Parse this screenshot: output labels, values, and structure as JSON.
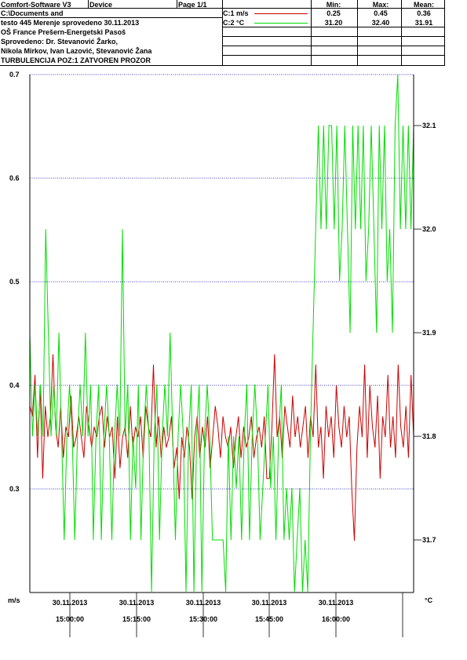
{
  "header": {
    "software": "Comfort-Software V3",
    "device_label": "Device",
    "page": "Page 1/1",
    "lines": [
      "C:\\Documents and",
      "testo 445 Merenje sprovedeno 30.11.2013",
      "OŠ France Prešern-Energetski Pasoš",
      "Sprovedeno: Dr. Stevanović Žarko,",
      "Nikola Mirkov, Ivan Lazović, Stevanović Žana",
      "TURBULENCIJA POZ:1 ZATVOREN PROZOR"
    ],
    "stat_headers": {
      "min": "Min:",
      "max": "Max:",
      "mean": "Mean:"
    },
    "channels": [
      {
        "label": "C:1 m/s",
        "color": "#cc0000",
        "min": "0.25",
        "max": "0.45",
        "mean": "0.36"
      },
      {
        "label": "C:2 °C",
        "color": "#00dd00",
        "min": "31.20",
        "max": "32.40",
        "mean": "31.91"
      }
    ]
  },
  "chart_data": {
    "type": "line",
    "left_axis": {
      "unit": "m/s",
      "range": [
        0.25,
        0.7
      ],
      "ticks": [
        "0.7",
        "0.6",
        "0.5",
        "0.4",
        "0.3"
      ]
    },
    "right_axis": {
      "unit": "°C",
      "range": [
        31.65,
        32.15
      ],
      "ticks": [
        "32.1",
        "32.0",
        "31.9",
        "31.8",
        "31.7"
      ]
    },
    "x_ticks": [
      {
        "date": "30.11.2013",
        "time": "15:00:00"
      },
      {
        "date": "30.11.2013",
        "time": "15:15:00"
      },
      {
        "date": "30.11.2013",
        "time": "15:30:00"
      },
      {
        "date": "30.11.2013",
        "time": "15:45:00"
      },
      {
        "date": "30.11.2013",
        "time": "16:00:00"
      }
    ],
    "grid": "horizontal dotted",
    "series": [
      {
        "name": "C:1 m/s",
        "axis": "left",
        "color": "#cc0000",
        "values": [
          0.38,
          0.37,
          0.41,
          0.33,
          0.4,
          0.31,
          0.38,
          0.35,
          0.37,
          0.43,
          0.36,
          0.34,
          0.38,
          0.33,
          0.36,
          0.35,
          0.39,
          0.34,
          0.35,
          0.37,
          0.35,
          0.33,
          0.38,
          0.36,
          0.34,
          0.36,
          0.35,
          0.37,
          0.38,
          0.34,
          0.37,
          0.35,
          0.36,
          0.31,
          0.37,
          0.32,
          0.35,
          0.36,
          0.33,
          0.38,
          0.34,
          0.36,
          0.35,
          0.37,
          0.33,
          0.38,
          0.36,
          0.35,
          0.42,
          0.34,
          0.37,
          0.33,
          0.36,
          0.34,
          0.35,
          0.37,
          0.32,
          0.34,
          0.29,
          0.35,
          0.33,
          0.36,
          0.34,
          0.29,
          0.35,
          0.37,
          0.33,
          0.36,
          0.34,
          0.37,
          0.32,
          0.35,
          0.38,
          0.36,
          0.33,
          0.37,
          0.35,
          0.34,
          0.36,
          0.32,
          0.35,
          0.37,
          0.33,
          0.36,
          0.34,
          0.35,
          0.37,
          0.33,
          0.35,
          0.36,
          0.34,
          0.37,
          0.31,
          0.31,
          0.36,
          0.43,
          0.35,
          0.37,
          0.33,
          0.38,
          0.36,
          0.34,
          0.39,
          0.35,
          0.37,
          0.34,
          0.36,
          0.38,
          0.33,
          0.37,
          0.35,
          0.42,
          0.34,
          0.36,
          0.31,
          0.38,
          0.35,
          0.37,
          0.33,
          0.4,
          0.36,
          0.34,
          0.38,
          0.35,
          0.37,
          0.3,
          0.25,
          0.34,
          0.38,
          0.35,
          0.42,
          0.33,
          0.4,
          0.36,
          0.34,
          0.39,
          0.31,
          0.37,
          0.35,
          0.41,
          0.34,
          0.37,
          0.33,
          0.42,
          0.36,
          0.34,
          0.38,
          0.33,
          0.41,
          0.35
        ]
      },
      {
        "name": "C:2 °C",
        "axis": "right",
        "color": "#00dd00",
        "values": [
          31.9,
          31.8,
          31.85,
          31.8,
          31.85,
          31.8,
          32.0,
          31.9,
          31.8,
          31.85,
          31.8,
          31.9,
          31.8,
          31.7,
          31.8,
          31.85,
          31.8,
          31.7,
          31.8,
          31.85,
          31.8,
          31.9,
          31.8,
          31.85,
          31.7,
          31.8,
          31.85,
          31.7,
          31.8,
          31.85,
          31.8,
          31.7,
          31.8,
          31.85,
          31.8,
          32.0,
          31.8,
          31.85,
          31.7,
          31.8,
          31.75,
          31.85,
          31.7,
          31.8,
          31.85,
          31.8,
          31.65,
          31.8,
          31.85,
          31.7,
          31.8,
          31.85,
          31.8,
          31.9,
          31.8,
          31.7,
          31.8,
          31.85,
          31.8,
          31.65,
          31.8,
          31.85,
          31.65,
          31.8,
          31.85,
          31.65,
          31.8,
          31.85,
          31.8,
          31.7,
          31.7,
          31.7,
          31.7,
          31.7,
          31.65,
          31.8,
          31.7,
          31.8,
          31.75,
          31.8,
          31.7,
          31.8,
          31.85,
          31.7,
          31.8,
          31.85,
          31.8,
          31.7,
          31.75,
          31.8,
          31.85,
          31.75,
          31.8,
          31.7,
          31.8,
          31.85,
          31.7,
          31.75,
          31.7,
          31.75,
          31.65,
          31.7,
          31.75,
          31.65,
          31.7,
          31.65,
          31.8,
          31.9,
          32.0,
          32.1,
          32.0,
          32.1,
          32.0,
          32.1,
          32.1,
          32.0,
          32.1,
          31.95,
          32.0,
          32.1,
          32.0,
          31.9,
          32.1,
          32.0,
          32.1,
          32.0,
          32.1,
          31.95,
          32.0,
          32.1,
          32.0,
          31.9,
          32.1,
          32.0,
          32.1,
          31.95,
          32.0,
          31.9,
          32.1,
          32.15,
          32.0,
          32.1,
          32.0,
          32.1,
          32.0,
          32.1
        ]
      }
    ]
  }
}
